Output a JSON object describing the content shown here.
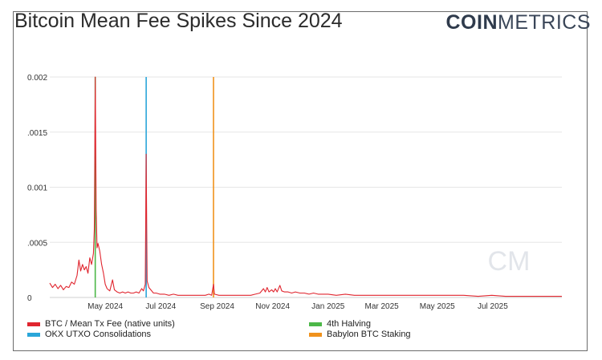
{
  "header": {
    "title": "Bitcoin Mean Fee Spikes Since 2024",
    "brand_bold": "COIN",
    "brand_light": "METRICS",
    "watermark": "CM"
  },
  "chart_data": {
    "type": "line",
    "title": "Bitcoin Mean Fee Spikes Since 2024",
    "xlabel": "",
    "ylabel": "",
    "x_range": [
      "2024-03-01",
      "2025-09-15"
    ],
    "ylim": [
      0,
      0.002
    ],
    "y_ticks": [
      {
        "value": 0,
        "label": "0"
      },
      {
        "value": 0.0005,
        "label": ".0005"
      },
      {
        "value": 0.001,
        "label": "0.001"
      },
      {
        "value": 0.0015,
        "label": ".0015"
      },
      {
        "value": 0.002,
        "label": "0.002"
      }
    ],
    "x_ticks": [
      {
        "date": "2024-05-01",
        "label": "May 2024"
      },
      {
        "date": "2024-07-01",
        "label": "Jul 2024"
      },
      {
        "date": "2024-09-01",
        "label": "Sep 2024"
      },
      {
        "date": "2024-11-01",
        "label": "Nov 2024"
      },
      {
        "date": "2025-01-01",
        "label": "Jan 2025"
      },
      {
        "date": "2025-03-01",
        "label": "Mar 2025"
      },
      {
        "date": "2025-05-01",
        "label": "May 2025"
      },
      {
        "date": "2025-07-01",
        "label": "Jul 2025"
      }
    ],
    "grid": true,
    "series": [
      {
        "name": "BTC / Mean Tx Fee (native units)",
        "color": "#e0262f",
        "points": [
          [
            "2024-03-01",
            0.00013
          ],
          [
            "2024-03-04",
            9e-05
          ],
          [
            "2024-03-07",
            0.00012
          ],
          [
            "2024-03-10",
            8e-05
          ],
          [
            "2024-03-13",
            0.00011
          ],
          [
            "2024-03-16",
            7e-05
          ],
          [
            "2024-03-19",
            0.0001
          ],
          [
            "2024-03-22",
            9e-05
          ],
          [
            "2024-03-25",
            0.00014
          ],
          [
            "2024-03-28",
            0.00012
          ],
          [
            "2024-03-31",
            0.0002
          ],
          [
            "2024-04-02",
            0.00034
          ],
          [
            "2024-04-04",
            0.00024
          ],
          [
            "2024-04-06",
            0.0003
          ],
          [
            "2024-04-08",
            0.00025
          ],
          [
            "2024-04-10",
            0.00028
          ],
          [
            "2024-04-12",
            0.00022
          ],
          [
            "2024-04-14",
            0.00036
          ],
          [
            "2024-04-16",
            0.0003
          ],
          [
            "2024-04-18",
            0.0004
          ],
          [
            "2024-04-19",
            0.00062
          ],
          [
            "2024-04-20",
            0.002
          ],
          [
            "2024-04-21",
            0.0008
          ],
          [
            "2024-04-22",
            0.00045
          ],
          [
            "2024-04-23",
            0.00049
          ],
          [
            "2024-04-25",
            0.00042
          ],
          [
            "2024-04-27",
            0.0003
          ],
          [
            "2024-04-29",
            0.00022
          ],
          [
            "2024-05-01",
            0.00012
          ],
          [
            "2024-05-03",
            8e-05
          ],
          [
            "2024-05-06",
            6e-05
          ],
          [
            "2024-05-09",
            0.00016
          ],
          [
            "2024-05-11",
            7e-05
          ],
          [
            "2024-05-14",
            5e-05
          ],
          [
            "2024-05-17",
            4e-05
          ],
          [
            "2024-05-20",
            5e-05
          ],
          [
            "2024-05-23",
            4e-05
          ],
          [
            "2024-05-26",
            5e-05
          ],
          [
            "2024-05-29",
            4e-05
          ],
          [
            "2024-06-01",
            4e-05
          ],
          [
            "2024-06-04",
            5e-05
          ],
          [
            "2024-06-07",
            4e-05
          ],
          [
            "2024-06-10",
            8e-05
          ],
          [
            "2024-06-12",
            6e-05
          ],
          [
            "2024-06-14",
            0.00012
          ],
          [
            "2024-06-15",
            0.0013
          ],
          [
            "2024-06-16",
            0.00015
          ],
          [
            "2024-06-18",
            9e-05
          ],
          [
            "2024-06-20",
            7e-05
          ],
          [
            "2024-06-23",
            4e-05
          ],
          [
            "2024-06-26",
            4e-05
          ],
          [
            "2024-06-30",
            3e-05
          ],
          [
            "2024-07-05",
            3e-05
          ],
          [
            "2024-07-10",
            2e-05
          ],
          [
            "2024-07-15",
            3e-05
          ],
          [
            "2024-07-20",
            2e-05
          ],
          [
            "2024-07-25",
            2e-05
          ],
          [
            "2024-07-30",
            2e-05
          ],
          [
            "2024-08-04",
            2e-05
          ],
          [
            "2024-08-09",
            2e-05
          ],
          [
            "2024-08-14",
            2e-05
          ],
          [
            "2024-08-19",
            2e-05
          ],
          [
            "2024-08-23",
            3e-05
          ],
          [
            "2024-08-26",
            2e-05
          ],
          [
            "2024-08-28",
            0.00012
          ],
          [
            "2024-08-29",
            3e-05
          ],
          [
            "2024-09-03",
            2e-05
          ],
          [
            "2024-09-08",
            2e-05
          ],
          [
            "2024-09-13",
            2e-05
          ],
          [
            "2024-09-18",
            2e-05
          ],
          [
            "2024-09-23",
            2e-05
          ],
          [
            "2024-09-28",
            2e-05
          ],
          [
            "2024-10-03",
            2e-05
          ],
          [
            "2024-10-08",
            2e-05
          ],
          [
            "2024-10-13",
            3e-05
          ],
          [
            "2024-10-18",
            4e-05
          ],
          [
            "2024-10-22",
            8e-05
          ],
          [
            "2024-10-24",
            5e-05
          ],
          [
            "2024-10-26",
            9e-05
          ],
          [
            "2024-10-28",
            5e-05
          ],
          [
            "2024-10-31",
            7e-05
          ],
          [
            "2024-11-02",
            5e-05
          ],
          [
            "2024-11-04",
            8e-05
          ],
          [
            "2024-11-06",
            5e-05
          ],
          [
            "2024-11-09",
            0.00011
          ],
          [
            "2024-11-11",
            6e-05
          ],
          [
            "2024-11-14",
            5e-05
          ],
          [
            "2024-11-18",
            5e-05
          ],
          [
            "2024-11-22",
            4e-05
          ],
          [
            "2024-11-26",
            5e-05
          ],
          [
            "2024-12-01",
            4e-05
          ],
          [
            "2024-12-06",
            4e-05
          ],
          [
            "2024-12-11",
            3e-05
          ],
          [
            "2024-12-16",
            4e-05
          ],
          [
            "2024-12-21",
            3e-05
          ],
          [
            "2024-12-26",
            3e-05
          ],
          [
            "2025-01-01",
            3e-05
          ],
          [
            "2025-01-10",
            2e-05
          ],
          [
            "2025-01-20",
            3e-05
          ],
          [
            "2025-01-30",
            2e-05
          ],
          [
            "2025-02-10",
            2e-05
          ],
          [
            "2025-02-20",
            2e-05
          ],
          [
            "2025-03-01",
            2e-05
          ],
          [
            "2025-03-15",
            2e-05
          ],
          [
            "2025-03-30",
            2e-05
          ],
          [
            "2025-04-15",
            2e-05
          ],
          [
            "2025-04-30",
            2e-05
          ],
          [
            "2025-05-15",
            2e-05
          ],
          [
            "2025-05-30",
            2e-05
          ],
          [
            "2025-06-15",
            1e-05
          ],
          [
            "2025-06-30",
            2e-05
          ],
          [
            "2025-07-15",
            1e-05
          ],
          [
            "2025-07-30",
            1e-05
          ],
          [
            "2025-08-15",
            1e-05
          ],
          [
            "2025-08-30",
            1e-05
          ],
          [
            "2025-09-15",
            1e-05
          ]
        ]
      }
    ],
    "events": [
      {
        "name": "4th Halving",
        "date": "2024-04-20",
        "color": "#4cb848"
      },
      {
        "name": "OKX UTXO Consolidations",
        "date": "2024-06-15",
        "color": "#2aa6d9"
      },
      {
        "name": "Babylon BTC Staking",
        "date": "2024-08-28",
        "color": "#f0921c"
      }
    ],
    "legend": {
      "placement": "bottom",
      "entries": [
        {
          "label": "BTC / Mean Tx Fee (native units)",
          "color": "#e0262f"
        },
        {
          "label": "OKX UTXO Consolidations",
          "color": "#2aa6d9"
        },
        {
          "label": "4th Halving",
          "color": "#4cb848"
        },
        {
          "label": "Babylon BTC Staking",
          "color": "#f0921c"
        }
      ]
    }
  }
}
